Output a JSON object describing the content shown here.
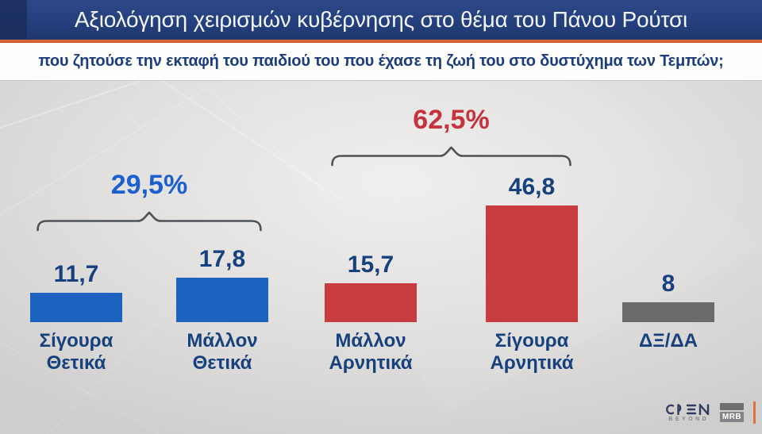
{
  "chart_data": {
    "type": "bar",
    "title": "Αξιολόγηση χειρισμών κυβέρνησης στο θέμα του Πάνου Ρούτσι",
    "subtitle": "που ζητούσε την εκταφή του παιδιού του που έχασε τη ζωή του στο δυστύχημα των Τεμπών;",
    "categories": [
      "Σίγουρα Θετικά",
      "Μάλλον Θετικά",
      "Μάλλον Αρνητικά",
      "Σίγουρα Αρνητικά",
      "ΔΞ/ΔΑ"
    ],
    "category_lines": [
      [
        "Σίγουρα",
        "Θετικά"
      ],
      [
        "Μάλλον",
        "Θετικά"
      ],
      [
        "Μάλλον",
        "Αρνητικά"
      ],
      [
        "Σίγουρα",
        "Αρνητικά"
      ],
      [
        "ΔΞ/ΔΑ"
      ]
    ],
    "values": [
      11.7,
      17.8,
      15.7,
      46.8,
      8
    ],
    "value_labels": [
      "11,7",
      "17,8",
      "15,7",
      "46,8",
      "8"
    ],
    "bar_colors": [
      "#1E62C0",
      "#1E62C0",
      "#C83B3E",
      "#C83B3E",
      "#6B6B6B"
    ],
    "groups": [
      {
        "label": "29,5%",
        "color": "#1B60CE",
        "from": 0,
        "to": 1
      },
      {
        "label": "62,5%",
        "color": "#C5343C",
        "from": 2,
        "to": 3
      }
    ],
    "ylim": [
      0,
      50
    ],
    "grid": false,
    "legend": false,
    "value_label_color": "#16407E",
    "category_label_color": "#16407E",
    "bracket_color": "#4E5256"
  },
  "footer": {
    "open_label": "OPEN",
    "open_sub": "BEYOND",
    "mrb_label": "MRB"
  },
  "colors": {
    "title_bar": "#24407E",
    "accent_orange": "#D95F33",
    "subtitle_text": "#1C3D7C",
    "background": "#E3E2E0"
  }
}
